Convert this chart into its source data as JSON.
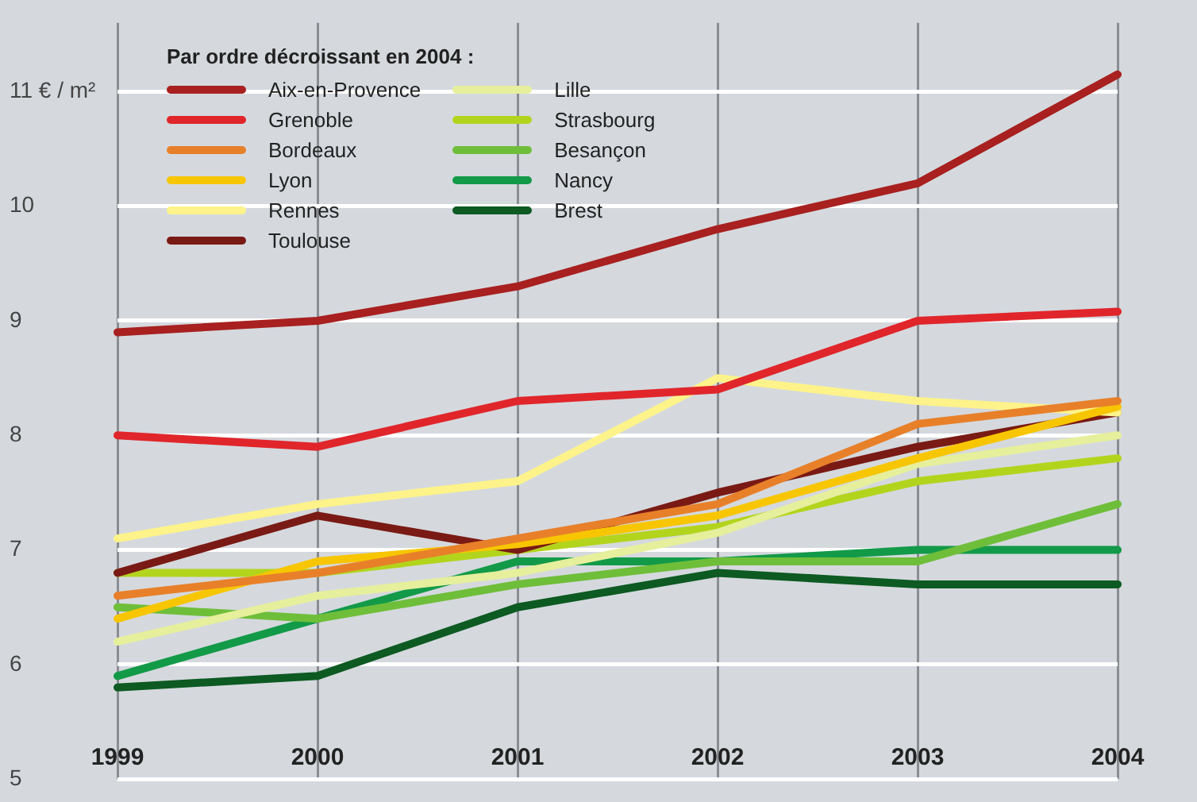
{
  "chart_data": {
    "type": "line",
    "legend_title": "Par ordre décroissant en 2004 :",
    "categories": [
      "1999",
      "2000",
      "2001",
      "2002",
      "2003",
      "2004"
    ],
    "series": [
      {
        "name": "Aix-en-Provence",
        "color": "#a8201f",
        "values": [
          8.9,
          9.0,
          9.3,
          9.8,
          10.2,
          11.15
        ]
      },
      {
        "name": "Grenoble",
        "color": "#e0262b",
        "values": [
          8.0,
          7.9,
          8.3,
          8.4,
          9.0,
          9.08
        ]
      },
      {
        "name": "Bordeaux",
        "color": "#e8802a",
        "values": [
          6.6,
          6.8,
          7.1,
          7.4,
          8.1,
          8.3
        ]
      },
      {
        "name": "Lyon",
        "color": "#f7c600",
        "values": [
          6.4,
          6.9,
          7.05,
          7.3,
          7.8,
          8.25
        ]
      },
      {
        "name": "Rennes",
        "color": "#fdf38a",
        "values": [
          7.1,
          7.4,
          7.6,
          8.5,
          8.3,
          8.2
        ]
      },
      {
        "name": "Toulouse",
        "color": "#7a1a14",
        "values": [
          6.8,
          7.3,
          7.0,
          7.5,
          7.9,
          8.2
        ]
      },
      {
        "name": "Lille",
        "color": "#e6ef9c",
        "values": [
          6.2,
          6.6,
          6.8,
          7.15,
          7.75,
          8.0
        ]
      },
      {
        "name": "Strasbourg",
        "color": "#b3d41d",
        "values": [
          6.8,
          6.8,
          7.0,
          7.2,
          7.6,
          7.8
        ]
      },
      {
        "name": "Besançon",
        "color": "#6fbe3a",
        "values": [
          6.5,
          6.4,
          6.7,
          6.9,
          6.9,
          7.4
        ]
      },
      {
        "name": "Nancy",
        "color": "#139a48",
        "values": [
          5.9,
          6.4,
          6.9,
          6.9,
          7.0,
          7.0
        ]
      },
      {
        "name": "Brest",
        "color": "#0d5a22",
        "values": [
          5.8,
          5.9,
          6.5,
          6.8,
          6.7,
          6.7
        ]
      }
    ],
    "ylim": [
      5,
      11.6
    ],
    "yticks": [
      5,
      6,
      7,
      8,
      9,
      10,
      {
        "value": 11,
        "label": "11 € / m²"
      }
    ],
    "grid": true,
    "legend": "top left",
    "marker": "none",
    "line_style": "solid"
  }
}
